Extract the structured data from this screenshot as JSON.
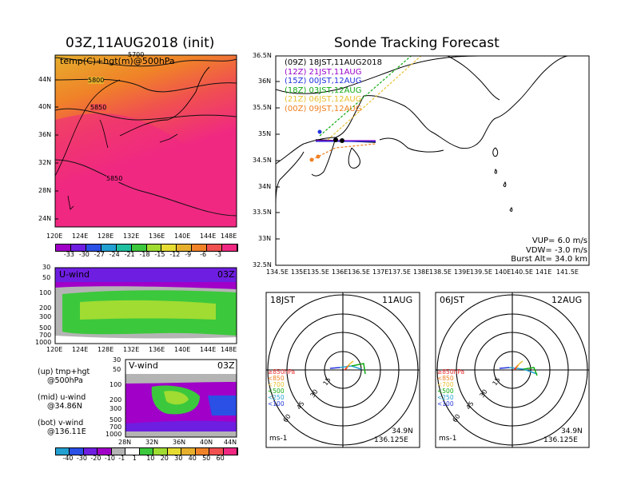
{
  "left_panel": {
    "title": "03Z,11AUG2018 (init)",
    "subtitle": "temp(C)+hgt(m)@500hPa",
    "lat_labels": [
      "44N",
      "40N",
      "36N",
      "32N",
      "28N",
      "24N"
    ],
    "lon_labels": [
      "120E",
      "124E",
      "128E",
      "132E",
      "136E",
      "140E",
      "144E",
      "148E"
    ],
    "contour_labels": [
      "5800",
      "5850",
      "5850",
      "5700"
    ],
    "colorbar_labels": [
      "-33",
      "-30",
      "-27",
      "-24",
      "-21",
      "-18",
      "-15",
      "-12",
      "-9",
      "-6",
      "-3"
    ],
    "colorbar_colors": [
      "#a000c8",
      "#6e1ee0",
      "#2a50e6",
      "#23a0d2",
      "#1ec0a0",
      "#3cc83c",
      "#a0dc32",
      "#e6dc32",
      "#e6af2d",
      "#f08228",
      "#f05050",
      "#f02882"
    ]
  },
  "uwind_panel": {
    "label": "U-wind",
    "time": "03Z",
    "pressure_labels": [
      "30",
      "50",
      "100",
      "200",
      "300",
      "500",
      "700",
      "1000"
    ],
    "lon_labels": [
      "120E",
      "124E",
      "128E",
      "132E",
      "136E",
      "140E",
      "144E",
      "148E"
    ]
  },
  "vwind_panel": {
    "label": "V-wind",
    "time": "03Z",
    "pressure_labels": [
      "30",
      "50",
      "100",
      "200",
      "300",
      "500",
      "700",
      "1000"
    ],
    "lat_labels": [
      "28N",
      "32N",
      "36N",
      "40N",
      "44N"
    ],
    "colorbar_labels": [
      "-40",
      "-30",
      "-20",
      "-10",
      "-1",
      "1",
      "10",
      "20",
      "30",
      "40",
      "50",
      "60"
    ],
    "colorbar_colors": [
      "#23a0d2",
      "#2a50e6",
      "#6e1ee0",
      "#a000c8",
      "#b4b4b4",
      "#ffffff",
      "#3cc83c",
      "#a0dc32",
      "#e6dc32",
      "#e6af2d",
      "#f08228",
      "#f05050",
      "#f02882"
    ]
  },
  "notes": [
    {
      "line1": "(up) tmp+hgt",
      "line2": "@500hPa"
    },
    {
      "line1": "(mid) u-wind",
      "line2": "@34.86N"
    },
    {
      "line1": "(bot) v-wind",
      "line2": "@136.11E"
    }
  ],
  "sonde_map": {
    "title": "Sonde Tracking Forecast",
    "lat_labels": [
      "36.5N",
      "36N",
      "35.5N",
      "35N",
      "34.5N",
      "34N",
      "33.5N",
      "33N",
      "32.5N"
    ],
    "lon_labels": [
      "134.5E",
      "135E",
      "135.5E",
      "136E",
      "136.5E",
      "137E",
      "137.5E",
      "138E",
      "138.5E",
      "139E",
      "139.5E",
      "140E",
      "140.5E",
      "141E",
      "141.5E"
    ],
    "legend": [
      {
        "text": "(09Z)  18JST,11AUG2018",
        "color": "#000000"
      },
      {
        "text": "(12Z)  21JST,11AUG",
        "color": "#9900cc"
      },
      {
        "text": "(15Z)  00JST,12AUG",
        "color": "#2233dd"
      },
      {
        "text": "(18Z)  03JST,12AUG",
        "color": "#11aa11"
      },
      {
        "text": "(21Z)  06JST,12AUG",
        "color": "#e8c030"
      },
      {
        "text": "(00Z)  09JST,12AUG",
        "color": "#f08020"
      }
    ],
    "params": [
      "VUP=  6.0  m/s",
      "VDW= -3.0  m/s",
      "Burst Alt=  34.0  km"
    ]
  },
  "hodo_left": {
    "time_label": "18JST",
    "date_label": "11AUG",
    "ring_labels": [
      "15",
      "30",
      "45",
      "60"
    ],
    "pressure_legend": [
      {
        "text": "≥850hPa",
        "color": "#f03030"
      },
      {
        "text": "<850",
        "color": "#f08020"
      },
      {
        "text": "<700",
        "color": "#e8c030"
      },
      {
        "text": "<500",
        "color": "#11aa11"
      },
      {
        "text": "<250",
        "color": "#23a0d2"
      },
      {
        "text": "<100",
        "color": "#2233dd"
      }
    ],
    "unit": "ms-1",
    "lat": "34.9N",
    "lon": "136.125E"
  },
  "hodo_right": {
    "time_label": "06JST",
    "date_label": "12AUG",
    "ring_labels": [
      "15",
      "30",
      "45",
      "60"
    ],
    "pressure_legend": [
      {
        "text": "≥850hPa",
        "color": "#f03030"
      },
      {
        "text": "<850",
        "color": "#f08020"
      },
      {
        "text": "<700",
        "color": "#e8c030"
      },
      {
        "text": "<500",
        "color": "#11aa11"
      },
      {
        "text": "<250",
        "color": "#23a0d2"
      },
      {
        "text": "<100",
        "color": "#2233dd"
      }
    ],
    "unit": "ms-1",
    "lat": "34.9N",
    "lon": "136.125E"
  }
}
